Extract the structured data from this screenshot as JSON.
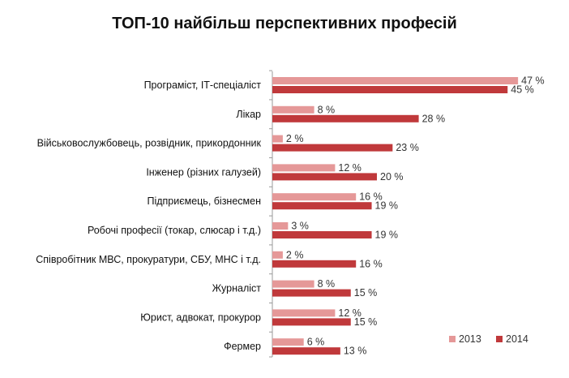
{
  "chart_data": {
    "type": "bar",
    "orientation": "horizontal",
    "title": "ТОП-10 найбільш перспективних професій",
    "xlabel": "",
    "ylabel": "",
    "xlim": [
      0,
      50
    ],
    "grid": false,
    "legend_position": "bottom-right",
    "value_suffix": " %",
    "categories": [
      "Програміст, ІТ-спеціаліст",
      "Лікар",
      "Військовослужбовець, розвідник, прикордонник",
      "Інженер (різних галузей)",
      "Підприємець, бізнесмен",
      "Робочі професії (токар, слюсар і т.д.)",
      "Співробітник МВС, прокуратури, СБУ, МНС і т.д.",
      "Журналіст",
      "Юрист, адвокат, прокурор",
      "Фермер"
    ],
    "series": [
      {
        "name": "2013",
        "color": "#E59898",
        "values": [
          47,
          8,
          2,
          12,
          16,
          3,
          2,
          8,
          12,
          6
        ]
      },
      {
        "name": "2014",
        "color": "#C0393B",
        "values": [
          45,
          28,
          23,
          20,
          19,
          19,
          16,
          15,
          15,
          13
        ]
      }
    ]
  }
}
